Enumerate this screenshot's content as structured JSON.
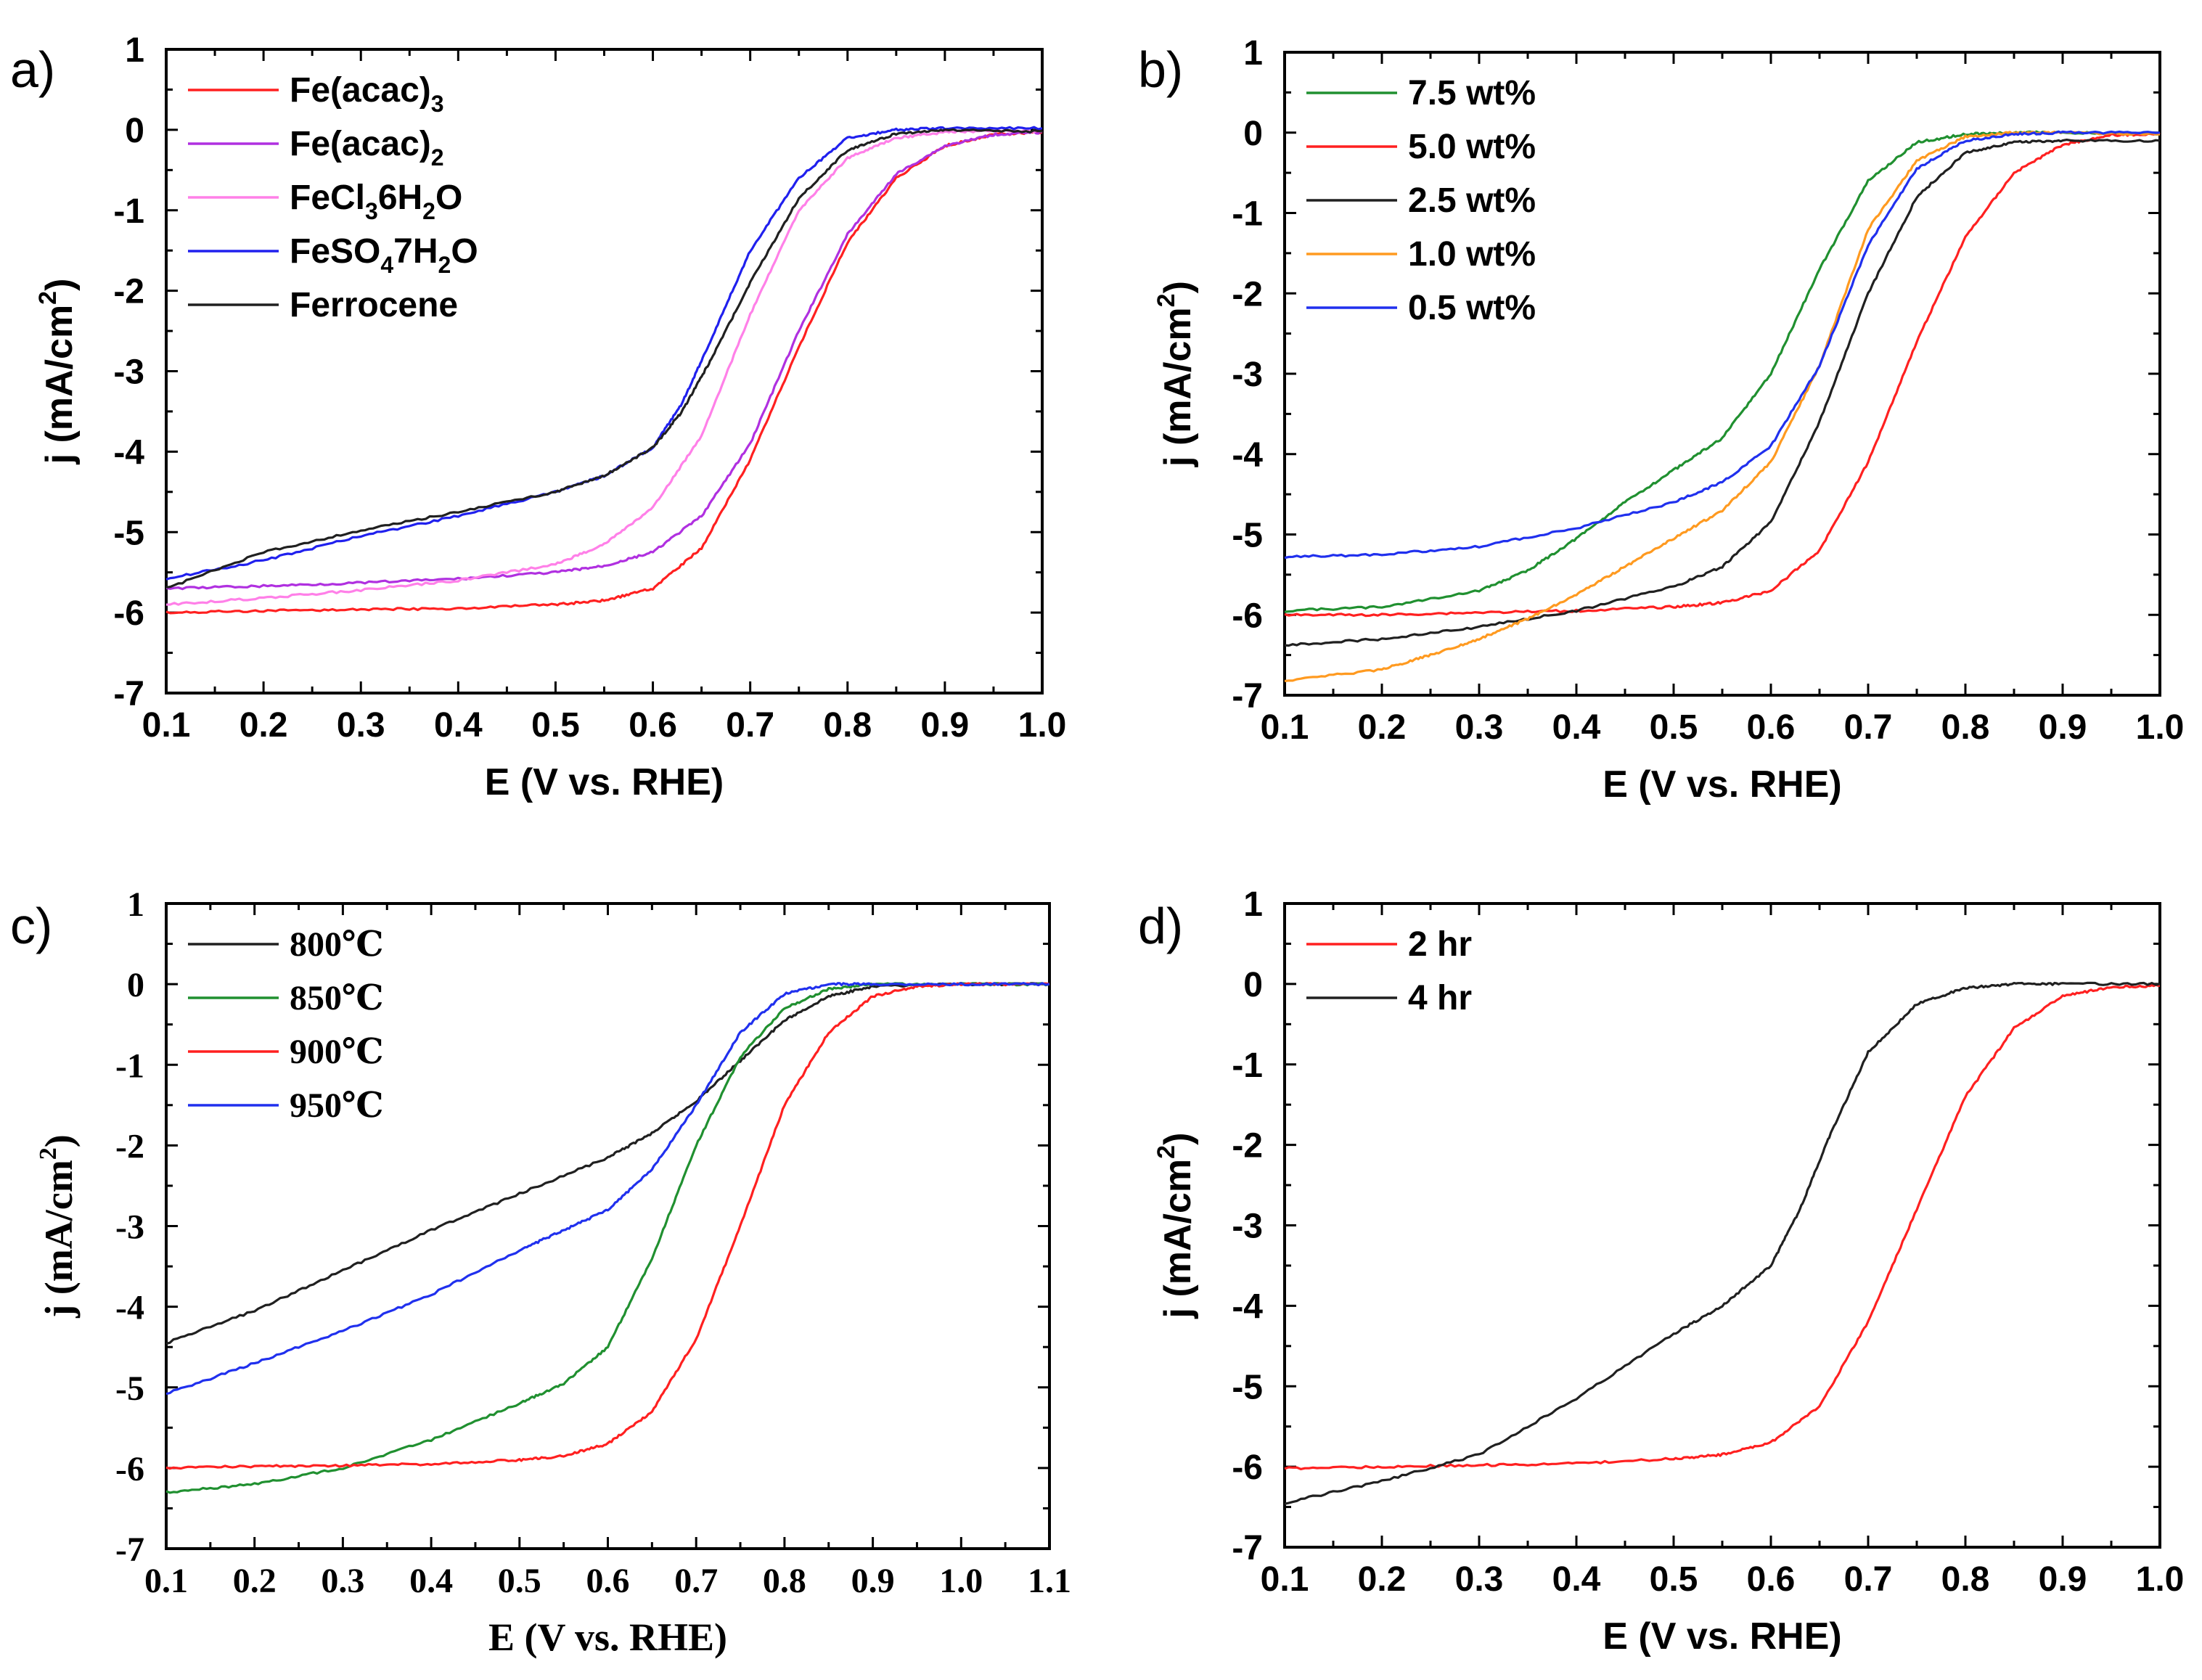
{
  "figure": {
    "title": ""
  },
  "chart_data": [
    {
      "panel": "a)",
      "type": "line",
      "xlabel": "E (V vs. RHE)",
      "ylabel": "j (mA/cm2)",
      "ylabel_parts": {
        "main": "j (mA/cm",
        "sup": "2",
        "end": ")"
      },
      "xlim": [
        0.1,
        1.0
      ],
      "ylim": [
        -7,
        1
      ],
      "xticks": [
        "0.1",
        "0.2",
        "0.3",
        "0.4",
        "0.5",
        "0.6",
        "0.7",
        "0.8",
        "0.9",
        "1.0"
      ],
      "yticks": [
        "1",
        "0",
        "-1",
        "-2",
        "-3",
        "-4",
        "-5",
        "-6",
        "-7"
      ],
      "legend_position": "top-left",
      "series": [
        {
          "name": "Fe(acac)3",
          "label": "Fe(acac)",
          "sub": "3",
          "label_end": "",
          "color": "#ff2020",
          "x": [
            0.1,
            0.2,
            0.3,
            0.4,
            0.5,
            0.55,
            0.6,
            0.65,
            0.7,
            0.75,
            0.8,
            0.85,
            0.9,
            0.95,
            1.0
          ],
          "y": [
            -6.0,
            -5.98,
            -5.96,
            -5.95,
            -5.9,
            -5.85,
            -5.7,
            -5.2,
            -4.1,
            -2.7,
            -1.4,
            -0.6,
            -0.2,
            -0.06,
            -0.03
          ]
        },
        {
          "name": "Fe(acac)2",
          "label": "Fe(acac)",
          "sub": "2",
          "label_end": "",
          "color": "#b030e0",
          "x": [
            0.1,
            0.2,
            0.3,
            0.4,
            0.5,
            0.55,
            0.6,
            0.65,
            0.7,
            0.75,
            0.8,
            0.85,
            0.9,
            0.95,
            1.0
          ],
          "y": [
            -5.7,
            -5.67,
            -5.63,
            -5.58,
            -5.5,
            -5.42,
            -5.25,
            -4.8,
            -3.9,
            -2.5,
            -1.3,
            -0.55,
            -0.2,
            -0.06,
            -0.03
          ]
        },
        {
          "name": "FeCl36H2O",
          "label": "FeCl",
          "sub": "3",
          "label_end": "6H",
          "sub2": "2",
          "label_end2": "O",
          "color": "#ff80e8",
          "x": [
            0.1,
            0.2,
            0.3,
            0.4,
            0.5,
            0.55,
            0.6,
            0.65,
            0.7,
            0.75,
            0.8,
            0.85,
            0.9,
            0.95,
            1.0
          ],
          "y": [
            -5.9,
            -5.82,
            -5.72,
            -5.6,
            -5.4,
            -5.15,
            -4.7,
            -3.8,
            -2.3,
            -1.0,
            -0.35,
            -0.1,
            -0.03,
            -0.01,
            -0.02
          ]
        },
        {
          "name": "FeSO47H2O",
          "label": "FeSO",
          "sub": "4",
          "label_end": "7H",
          "sub2": "2",
          "label_end2": "O",
          "color": "#2020ee",
          "x": [
            0.1,
            0.2,
            0.3,
            0.4,
            0.5,
            0.55,
            0.6,
            0.63,
            0.66,
            0.7,
            0.75,
            0.8,
            0.85,
            0.9,
            1.0
          ],
          "y": [
            -5.58,
            -5.35,
            -5.05,
            -4.8,
            -4.5,
            -4.3,
            -3.95,
            -3.4,
            -2.6,
            -1.5,
            -0.6,
            -0.1,
            0.0,
            0.02,
            0.02
          ]
        },
        {
          "name": "Ferrocene",
          "label": "Ferrocene",
          "sub": "",
          "label_end": "",
          "color": "#202020",
          "x": [
            0.1,
            0.2,
            0.3,
            0.4,
            0.5,
            0.55,
            0.6,
            0.63,
            0.66,
            0.7,
            0.75,
            0.8,
            0.85,
            0.9,
            1.0
          ],
          "y": [
            -5.7,
            -5.25,
            -4.98,
            -4.75,
            -4.5,
            -4.3,
            -3.95,
            -3.5,
            -2.85,
            -1.9,
            -0.85,
            -0.25,
            -0.05,
            0.0,
            -0.02
          ]
        }
      ]
    },
    {
      "panel": "b)",
      "type": "line",
      "xlabel": "E (V vs. RHE)",
      "ylabel": "j (mA/cm2)",
      "ylabel_parts": {
        "main": "j (mA/cm",
        "sup": "2",
        "end": ")"
      },
      "xlim": [
        0.1,
        1.0
      ],
      "ylim": [
        -7,
        1
      ],
      "xticks": [
        "0.1",
        "0.2",
        "0.3",
        "0.4",
        "0.5",
        "0.6",
        "0.7",
        "0.8",
        "0.9",
        "1.0"
      ],
      "yticks": [
        "1",
        "0",
        "-1",
        "-2",
        "-3",
        "-4",
        "-5",
        "-6",
        "-7"
      ],
      "legend_position": "top-left",
      "series": [
        {
          "name": "7.5 wt%",
          "label": "7.5 wt%",
          "color": "#209030",
          "x": [
            0.1,
            0.2,
            0.3,
            0.35,
            0.4,
            0.45,
            0.5,
            0.55,
            0.6,
            0.65,
            0.7,
            0.75,
            0.8,
            0.85,
            0.9,
            1.0
          ],
          "y": [
            -5.95,
            -5.9,
            -5.7,
            -5.45,
            -5.05,
            -4.6,
            -4.2,
            -3.8,
            -3.0,
            -1.7,
            -0.6,
            -0.12,
            -0.02,
            0.0,
            0.0,
            -0.02
          ]
        },
        {
          "name": "5.0 wt%",
          "label": "5.0 wt%",
          "color": "#ff2020",
          "x": [
            0.1,
            0.2,
            0.3,
            0.4,
            0.5,
            0.55,
            0.6,
            0.65,
            0.7,
            0.75,
            0.8,
            0.85,
            0.9,
            0.95,
            1.0
          ],
          "y": [
            -6.0,
            -6.0,
            -5.97,
            -5.95,
            -5.9,
            -5.85,
            -5.7,
            -5.2,
            -4.1,
            -2.6,
            -1.3,
            -0.5,
            -0.15,
            -0.03,
            -0.02
          ]
        },
        {
          "name": "2.5 wt%",
          "label": "2.5 wt%",
          "color": "#202020",
          "x": [
            0.1,
            0.2,
            0.3,
            0.4,
            0.5,
            0.55,
            0.6,
            0.65,
            0.7,
            0.75,
            0.8,
            0.85,
            0.9,
            1.0
          ],
          "y": [
            -6.38,
            -6.3,
            -6.15,
            -5.95,
            -5.65,
            -5.4,
            -4.85,
            -3.6,
            -2.0,
            -0.8,
            -0.25,
            -0.12,
            -0.1,
            -0.1
          ]
        },
        {
          "name": "1.0 wt%",
          "label": "1.0 wt%",
          "color": "#ff9a20",
          "x": [
            0.1,
            0.2,
            0.25,
            0.3,
            0.35,
            0.4,
            0.45,
            0.5,
            0.55,
            0.6,
            0.65,
            0.7,
            0.75,
            0.8,
            0.85,
            0.9,
            1.0
          ],
          "y": [
            -6.82,
            -6.68,
            -6.5,
            -6.3,
            -6.05,
            -5.75,
            -5.4,
            -5.05,
            -4.7,
            -4.1,
            -2.9,
            -1.2,
            -0.35,
            -0.05,
            0.0,
            0.0,
            -0.02
          ]
        },
        {
          "name": "0.5 wt%",
          "label": "0.5 wt%",
          "color": "#2030ee",
          "x": [
            0.1,
            0.2,
            0.3,
            0.4,
            0.5,
            0.55,
            0.6,
            0.65,
            0.7,
            0.75,
            0.8,
            0.85,
            0.9,
            1.0
          ],
          "y": [
            -5.28,
            -5.25,
            -5.15,
            -4.92,
            -4.6,
            -4.35,
            -3.9,
            -2.9,
            -1.4,
            -0.45,
            -0.1,
            -0.02,
            0.0,
            0.0
          ]
        }
      ]
    },
    {
      "panel": "c)",
      "type": "line",
      "serif": true,
      "xlabel": "E (V vs. RHE)",
      "ylabel": "j (mA/cm2)",
      "ylabel_parts": {
        "main": "j (mA/cm",
        "sup": "2",
        "end": ")"
      },
      "xlim": [
        0.1,
        1.1
      ],
      "ylim": [
        -7,
        1
      ],
      "xticks": [
        "0.1",
        "0.2",
        "0.3",
        "0.4",
        "0.5",
        "0.6",
        "0.7",
        "0.8",
        "0.9",
        "1.0",
        "1.1"
      ],
      "yticks": [
        "1",
        "0",
        "-1",
        "-2",
        "-3",
        "-4",
        "-5",
        "-6",
        "-7"
      ],
      "legend_position": "top-left",
      "series": [
        {
          "name": "800℃",
          "label": "800℃",
          "color": "#202020",
          "x": [
            0.1,
            0.2,
            0.3,
            0.4,
            0.5,
            0.6,
            0.65,
            0.7,
            0.75,
            0.8,
            0.85,
            0.9,
            1.0,
            1.1
          ],
          "y": [
            -4.45,
            -4.05,
            -3.55,
            -3.05,
            -2.6,
            -2.15,
            -1.85,
            -1.45,
            -0.95,
            -0.45,
            -0.15,
            -0.03,
            0.0,
            0.0
          ]
        },
        {
          "name": "850℃",
          "label": "850℃",
          "color": "#209030",
          "x": [
            0.1,
            0.2,
            0.3,
            0.4,
            0.5,
            0.55,
            0.6,
            0.65,
            0.7,
            0.75,
            0.8,
            0.85,
            0.9,
            1.0,
            1.1
          ],
          "y": [
            -6.3,
            -6.2,
            -6.0,
            -5.65,
            -5.2,
            -4.95,
            -4.5,
            -3.4,
            -2.0,
            -0.9,
            -0.3,
            -0.06,
            0.0,
            0.0,
            0.0
          ]
        },
        {
          "name": "900℃",
          "label": "900℃",
          "color": "#ff2020",
          "x": [
            0.1,
            0.2,
            0.3,
            0.4,
            0.5,
            0.55,
            0.6,
            0.65,
            0.7,
            0.75,
            0.8,
            0.85,
            0.9,
            0.95,
            1.0,
            1.1
          ],
          "y": [
            -6.0,
            -5.98,
            -5.97,
            -5.95,
            -5.9,
            -5.85,
            -5.7,
            -5.3,
            -4.4,
            -3.0,
            -1.5,
            -0.6,
            -0.15,
            -0.03,
            0.0,
            0.0
          ]
        },
        {
          "name": "950℃",
          "label": "950℃",
          "color": "#2030ee",
          "x": [
            0.1,
            0.2,
            0.3,
            0.4,
            0.5,
            0.55,
            0.6,
            0.65,
            0.7,
            0.75,
            0.8,
            0.85,
            0.9,
            1.0,
            1.1
          ],
          "y": [
            -5.08,
            -4.7,
            -4.3,
            -3.85,
            -3.3,
            -3.05,
            -2.8,
            -2.3,
            -1.5,
            -0.6,
            -0.12,
            0.0,
            0.0,
            0.0,
            0.0
          ]
        }
      ]
    },
    {
      "panel": "d)",
      "type": "line",
      "xlabel": "E (V vs. RHE)",
      "ylabel": "j (mA/cm2)",
      "ylabel_parts": {
        "main": "j (mA/cm",
        "sup": "2",
        "end": ")"
      },
      "xlim": [
        0.1,
        1.0
      ],
      "ylim": [
        -7,
        1
      ],
      "xticks": [
        "0.1",
        "0.2",
        "0.3",
        "0.4",
        "0.5",
        "0.6",
        "0.7",
        "0.8",
        "0.9",
        "1.0"
      ],
      "yticks": [
        "1",
        "0",
        "-1",
        "-2",
        "-3",
        "-4",
        "-5",
        "-6",
        "-7"
      ],
      "legend_position": "top-left",
      "series": [
        {
          "name": "2 hr",
          "label": "2 hr",
          "color": "#ff2020",
          "x": [
            0.1,
            0.2,
            0.3,
            0.4,
            0.5,
            0.55,
            0.6,
            0.65,
            0.7,
            0.75,
            0.8,
            0.85,
            0.9,
            0.95,
            1.0
          ],
          "y": [
            -6.02,
            -6.0,
            -5.98,
            -5.96,
            -5.9,
            -5.85,
            -5.7,
            -5.25,
            -4.2,
            -2.8,
            -1.4,
            -0.55,
            -0.15,
            -0.04,
            -0.02
          ]
        },
        {
          "name": "4 hr",
          "label": "4 hr",
          "color": "#202020",
          "x": [
            0.1,
            0.2,
            0.3,
            0.4,
            0.5,
            0.55,
            0.6,
            0.63,
            0.66,
            0.7,
            0.75,
            0.8,
            0.85,
            0.9,
            1.0
          ],
          "y": [
            -6.45,
            -6.18,
            -5.85,
            -5.15,
            -4.35,
            -4.0,
            -3.5,
            -2.8,
            -1.9,
            -0.85,
            -0.25,
            -0.05,
            0.0,
            0.0,
            0.0
          ]
        }
      ]
    }
  ]
}
